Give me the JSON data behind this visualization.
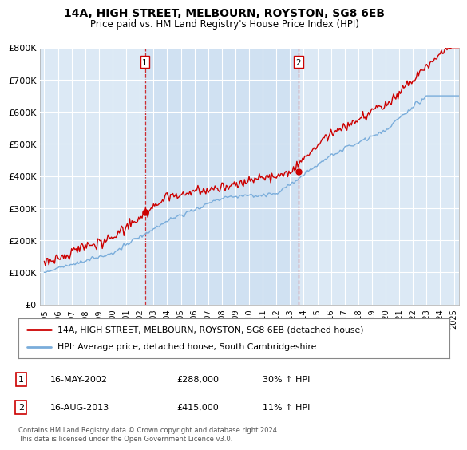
{
  "title": "14A, HIGH STREET, MELBOURN, ROYSTON, SG8 6EB",
  "subtitle": "Price paid vs. HM Land Registry's House Price Index (HPI)",
  "legend_line1": "14A, HIGH STREET, MELBOURN, ROYSTON, SG8 6EB (detached house)",
  "legend_line2": "HPI: Average price, detached house, South Cambridgeshire",
  "annotation1": {
    "num": "1",
    "date": "16-MAY-2002",
    "price": "£288,000",
    "change": "30% ↑ HPI"
  },
  "annotation2": {
    "num": "2",
    "date": "16-AUG-2013",
    "price": "£415,000",
    "change": "11% ↑ HPI"
  },
  "footer": "Contains HM Land Registry data © Crown copyright and database right 2024.\nThis data is licensed under the Open Government Licence v3.0.",
  "price_color": "#cc0000",
  "hpi_color": "#7aaddb",
  "shade_color": "#dce9f5",
  "ylim": [
    0,
    800000
  ],
  "yticks": [
    0,
    100000,
    200000,
    300000,
    400000,
    500000,
    600000,
    700000,
    800000
  ],
  "ytick_labels": [
    "£0",
    "£100K",
    "£200K",
    "£300K",
    "£400K",
    "£500K",
    "£600K",
    "£700K",
    "£800K"
  ],
  "sale1_year": 2002.37,
  "sale1_price": 288000,
  "sale2_year": 2013.62,
  "sale2_price": 415000,
  "background_color": "#dce9f5",
  "chart_bg": "#dce9f5"
}
